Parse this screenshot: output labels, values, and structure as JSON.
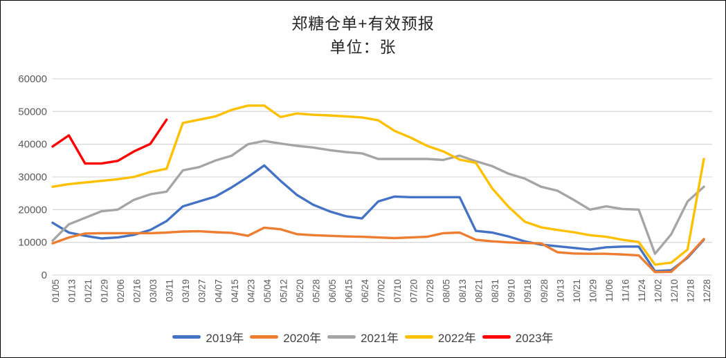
{
  "chart": {
    "title": "郑糖仓单+有效预报",
    "subtitle": "单位：张"
  },
  "colors": {
    "background": "#FFFFFF",
    "border": "#000000",
    "gridline": "#D9D9D9",
    "axis_text": "#595959",
    "title_text": "#262626",
    "series_2019": "#4472C4",
    "series_2020": "#ED7D31",
    "series_2021": "#A5A5A5",
    "series_2022": "#FFC000",
    "series_2023": "#FF0000"
  },
  "chart_data": {
    "type": "line",
    "title": "郑糖仓单+有效预报",
    "subtitle": "单位：张",
    "xlabel": "",
    "ylabel": "",
    "ylim": [
      0,
      60000
    ],
    "y_tick_step": 10000,
    "y_ticks": [
      0,
      10000,
      20000,
      30000,
      40000,
      50000,
      60000
    ],
    "grid": "horizontal",
    "legend_position": "bottom",
    "x_labels": [
      "01/05",
      "01/13",
      "01/21",
      "01/29",
      "02/06",
      "02/16",
      "03/03",
      "03/11",
      "03/19",
      "03/27",
      "04/07",
      "04/15",
      "04/23",
      "05/04",
      "05/12",
      "05/20",
      "05/28",
      "06/05",
      "06/15",
      "06/24",
      "07/02",
      "07/10",
      "07/20",
      "07/28",
      "08/05",
      "08/13",
      "08/21",
      "08/31",
      "09/10",
      "09/18",
      "09/28",
      "10/13",
      "10/21",
      "10/29",
      "11/06",
      "11/16",
      "11/24",
      "12/02",
      "12/10",
      "12/18",
      "12/28"
    ],
    "series": [
      {
        "name": "2019年",
        "color": "#4472C4",
        "values": [
          16000,
          13000,
          12000,
          11200,
          11500,
          12300,
          13800,
          16500,
          21000,
          22500,
          24000,
          26800,
          30000,
          33500,
          28800,
          24500,
          21500,
          19500,
          18000,
          17300,
          22500,
          24000,
          23800,
          23800,
          23800,
          23800,
          13500,
          13000,
          11800,
          10300,
          9300,
          8800,
          8300,
          7800,
          8500,
          8700,
          8700,
          1200,
          1500,
          5300,
          10800
        ]
      },
      {
        "name": "2020年",
        "color": "#ED7D31",
        "values": [
          9700,
          11500,
          12700,
          12800,
          12800,
          12800,
          12800,
          13000,
          13300,
          13400,
          13100,
          12900,
          12000,
          14500,
          14000,
          12500,
          12200,
          12000,
          11800,
          11700,
          11500,
          11300,
          11500,
          11700,
          12800,
          13000,
          10800,
          10300,
          10000,
          9800,
          9700,
          7000,
          6600,
          6500,
          6500,
          6300,
          6000,
          900,
          1000,
          5600,
          11000
        ]
      },
      {
        "name": "2021年",
        "color": "#A5A5A5",
        "values": [
          10500,
          15500,
          17500,
          19500,
          20000,
          23000,
          24700,
          25500,
          32000,
          33000,
          35000,
          36500,
          40000,
          41000,
          40200,
          39500,
          39000,
          38200,
          37600,
          37200,
          35500,
          35500,
          35500,
          35500,
          35200,
          36500,
          34800,
          33300,
          31000,
          29500,
          27000,
          25800,
          23000,
          20000,
          21000,
          20200,
          20000,
          6500,
          12500,
          22500,
          27000
        ]
      },
      {
        "name": "2022年",
        "color": "#FFC000",
        "values": [
          27000,
          27800,
          28300,
          28800,
          29300,
          30000,
          31500,
          32500,
          46500,
          47500,
          48500,
          50500,
          51800,
          51800,
          48300,
          49400,
          49000,
          48800,
          48500,
          48200,
          47300,
          44100,
          42000,
          39500,
          37800,
          35300,
          34300,
          26500,
          20900,
          16300,
          14600,
          13800,
          13100,
          12200,
          11700,
          10800,
          10100,
          3200,
          3800,
          7800,
          35500
        ]
      },
      {
        "name": "2023年",
        "color": "#FF0000",
        "values": [
          39300,
          42700,
          34100,
          34100,
          34900,
          37800,
          40100,
          47500,
          null,
          null,
          null,
          null,
          null,
          null,
          null,
          null,
          null,
          null,
          null,
          null,
          null,
          null,
          null,
          null,
          null,
          null,
          null,
          null,
          null,
          null,
          null,
          null,
          null,
          null,
          null,
          null,
          null,
          null,
          null,
          null,
          null
        ]
      }
    ]
  }
}
